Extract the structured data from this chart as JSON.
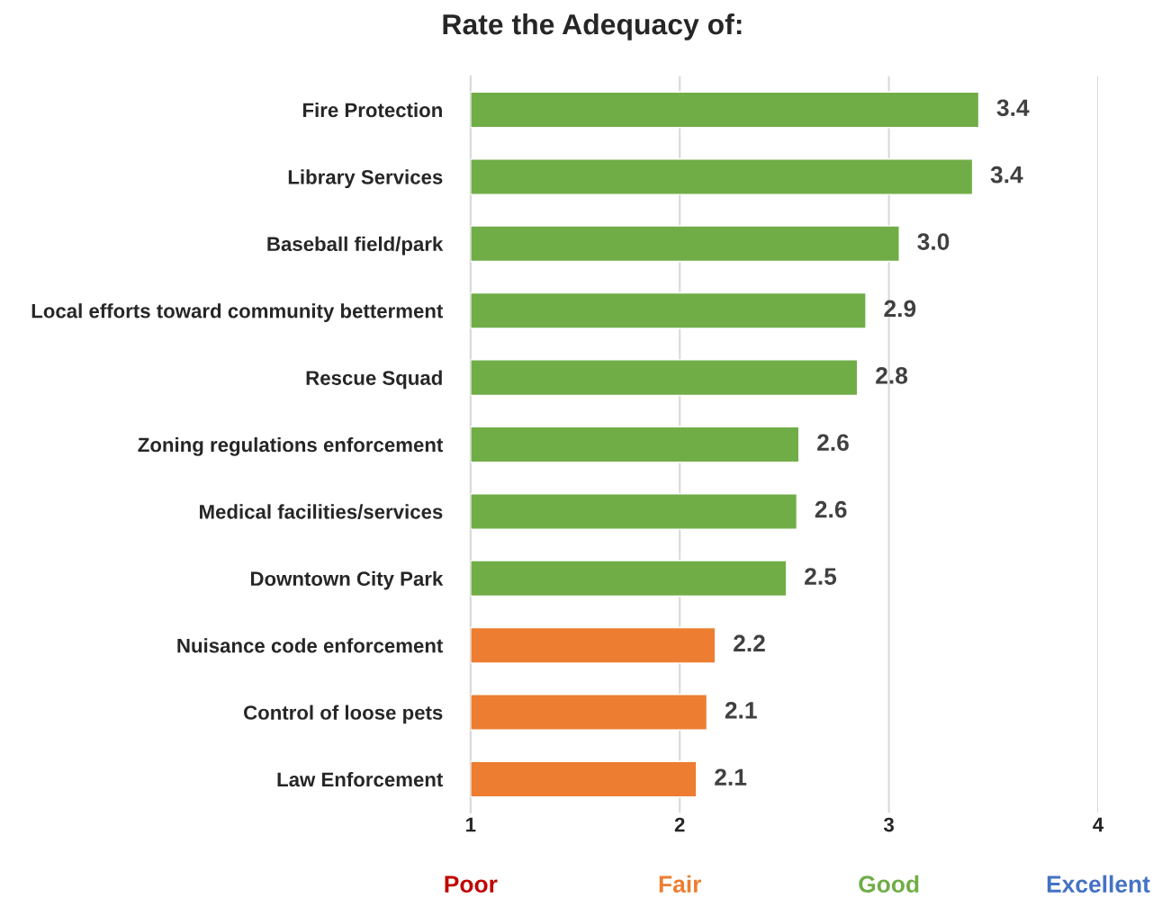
{
  "chart_data": {
    "type": "bar",
    "orientation": "horizontal",
    "title": "Rate the Adequacy of:",
    "categories": [
      "Fire Protection",
      "Library Services",
      "Baseball field/park",
      "Local efforts toward community betterment",
      "Rescue Squad",
      "Zoning regulations enforcement",
      "Medical facilities/services",
      "Downtown City Park",
      "Nuisance code enforcement",
      "Control of loose pets",
      "Law Enforcement"
    ],
    "values": [
      3.43,
      3.4,
      3.05,
      2.89,
      2.85,
      2.57,
      2.56,
      2.51,
      2.17,
      2.13,
      2.08
    ],
    "value_labels": [
      "3.4",
      "3.4",
      "3.0",
      "2.9",
      "2.8",
      "2.6",
      "2.6",
      "2.5",
      "2.2",
      "2.1",
      "2.1"
    ],
    "colors": [
      "#70ad47",
      "#70ad47",
      "#70ad47",
      "#70ad47",
      "#70ad47",
      "#70ad47",
      "#70ad47",
      "#70ad47",
      "#ed7d31",
      "#ed7d31",
      "#ed7d31"
    ],
    "xlim": [
      1,
      4
    ],
    "xticks": [
      1,
      2,
      3,
      4
    ],
    "annotations": [
      "Poor",
      "Fair",
      "Good",
      "Excellent"
    ],
    "grid": "x",
    "legend": false
  }
}
